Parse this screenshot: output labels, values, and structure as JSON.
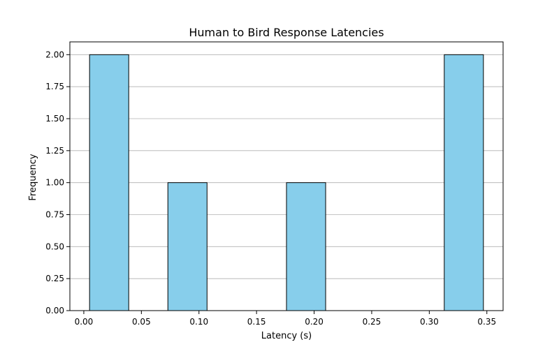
{
  "chart_data": {
    "type": "bar",
    "title": "Human to Bird Response Latencies",
    "xlabel": "Latency (s)",
    "ylabel": "Frequency",
    "bins": [
      {
        "x0": 0.005,
        "x1": 0.039,
        "count": 2
      },
      {
        "x0": 0.039,
        "x1": 0.073,
        "count": 0
      },
      {
        "x0": 0.073,
        "x1": 0.107,
        "count": 1
      },
      {
        "x0": 0.107,
        "x1": 0.141,
        "count": 0
      },
      {
        "x0": 0.141,
        "x1": 0.176,
        "count": 0
      },
      {
        "x0": 0.176,
        "x1": 0.21,
        "count": 1
      },
      {
        "x0": 0.21,
        "x1": 0.244,
        "count": 0
      },
      {
        "x0": 0.244,
        "x1": 0.278,
        "count": 0
      },
      {
        "x0": 0.278,
        "x1": 0.313,
        "count": 0
      },
      {
        "x0": 0.313,
        "x1": 0.347,
        "count": 2
      }
    ],
    "xlim": [
      -0.0121,
      0.3641
    ],
    "ylim": [
      0,
      2.1
    ],
    "xticks": [
      {
        "value": 0.0,
        "label": "0.00"
      },
      {
        "value": 0.05,
        "label": "0.05"
      },
      {
        "value": 0.1,
        "label": "0.10"
      },
      {
        "value": 0.15,
        "label": "0.15"
      },
      {
        "value": 0.2,
        "label": "0.20"
      },
      {
        "value": 0.25,
        "label": "0.25"
      },
      {
        "value": 0.3,
        "label": "0.30"
      },
      {
        "value": 0.35,
        "label": "0.35"
      }
    ],
    "yticks": [
      {
        "value": 0.0,
        "label": "0.00"
      },
      {
        "value": 0.25,
        "label": "0.25"
      },
      {
        "value": 0.5,
        "label": "0.50"
      },
      {
        "value": 0.75,
        "label": "0.75"
      },
      {
        "value": 1.0,
        "label": "1.00"
      },
      {
        "value": 1.25,
        "label": "1.25"
      },
      {
        "value": 1.5,
        "label": "1.50"
      },
      {
        "value": 1.75,
        "label": "1.75"
      },
      {
        "value": 2.0,
        "label": "2.00"
      }
    ],
    "grid": "y",
    "colors": {
      "bar_fill": "#87ceeb",
      "bar_edge": "#000000",
      "grid": "#b0b0b0"
    }
  }
}
